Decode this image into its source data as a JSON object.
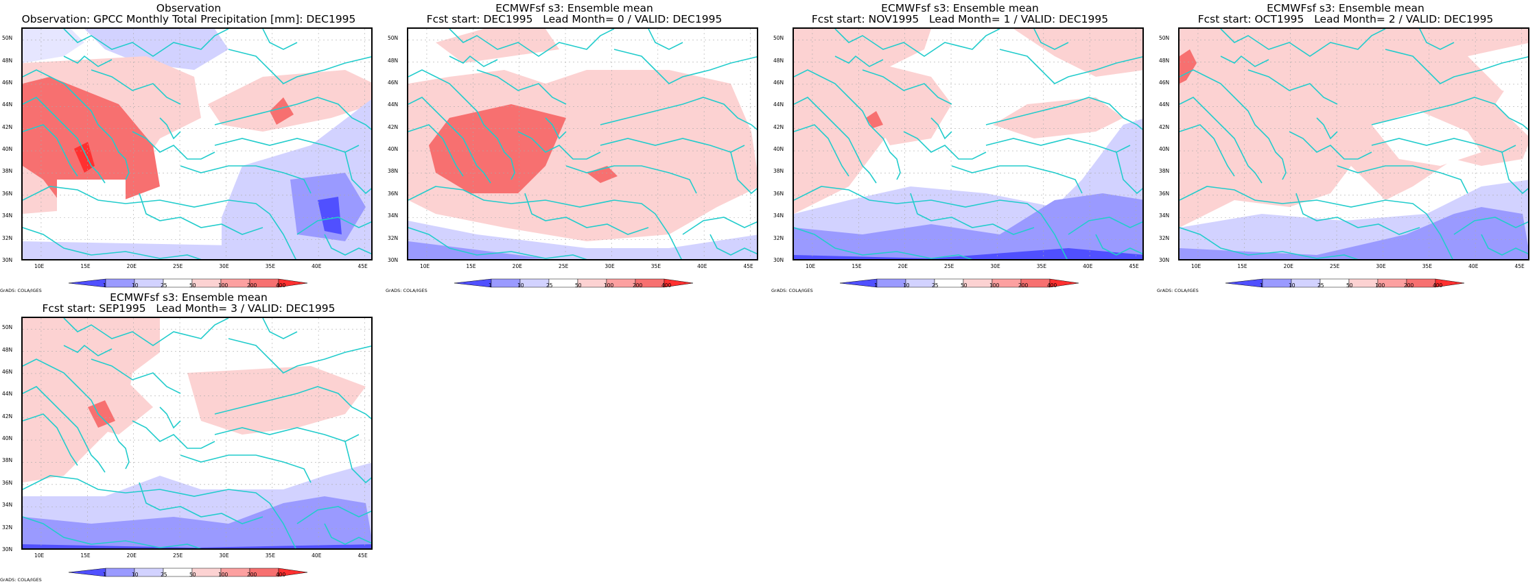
{
  "figure": {
    "variable": "Monthly Total Precipitation [mm]",
    "valid": "DEC1995",
    "credit": "GrADS: COLA/IGES"
  },
  "axes": {
    "x_ticks": [
      "10E",
      "15E",
      "20E",
      "25E",
      "30E",
      "35E",
      "40E",
      "45E"
    ],
    "y_ticks": [
      "30N",
      "32N",
      "34N",
      "36N",
      "38N",
      "40N",
      "42N",
      "44N",
      "46N",
      "48N",
      "50N"
    ],
    "lon_range": [
      8,
      46
    ],
    "lat_range": [
      30,
      51
    ]
  },
  "colorbar": {
    "labels": [
      "1",
      "10",
      "25",
      "50",
      "100",
      "200",
      "400"
    ],
    "colors": [
      "#5050ff",
      "#9a9aff",
      "#d2d2ff",
      "#ffffff",
      "#fcd2d2",
      "#fca0a0",
      "#f77070",
      "#ff3030"
    ]
  },
  "coast_color": "#22cccc",
  "panels": [
    {
      "line1": "Observation",
      "line2": "Observation: GPCC Monthly Total Precipitation [mm]: DEC1995",
      "kind": "obs"
    },
    {
      "line1": "ECMWFsf s3: Ensemble mean",
      "line2": "Fcst start: DEC1995   Lead Month= 0 / VALID: DEC1995",
      "kind": "lead0"
    },
    {
      "line1": "ECMWFsf s3: Ensemble mean",
      "line2": "Fcst start: NOV1995   Lead Month= 1 / VALID: DEC1995",
      "kind": "lead1"
    },
    {
      "line1": "ECMWFsf s3: Ensemble mean",
      "line2": "Fcst start: OCT1995   Lead Month= 2 / VALID: DEC1995",
      "kind": "lead2"
    },
    {
      "line1": "ECMWFsf s3: Ensemble mean",
      "line2": "Fcst start: SEP1995   Lead Month= 3 / VALID: DEC1995",
      "kind": "lead3"
    }
  ]
}
